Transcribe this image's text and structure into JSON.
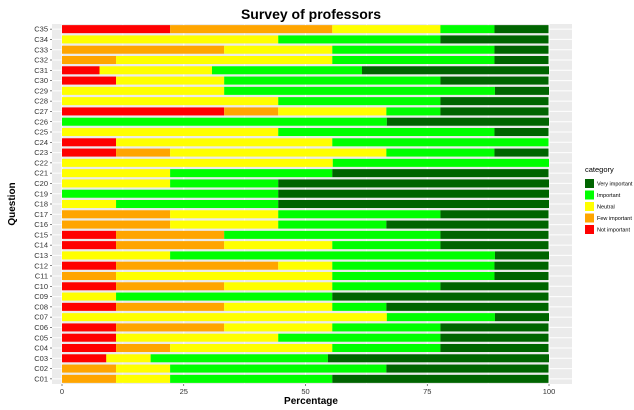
{
  "chart_data": {
    "type": "bar",
    "orientation": "horizontal",
    "stacked": true,
    "title": "Survey of professors",
    "xlabel": "Percentage",
    "ylabel": "Question",
    "xlim": [
      0,
      100
    ],
    "xticks": [
      "0",
      "25",
      "50",
      "75",
      "100"
    ],
    "xtick_values": [
      0,
      25,
      50,
      75,
      100
    ],
    "legend_title": "category",
    "legend_position": "right",
    "grid": true,
    "categories": [
      "C35",
      "C34",
      "C33",
      "C32",
      "C31",
      "C30",
      "C29",
      "C28",
      "C27",
      "C26",
      "C25",
      "C24",
      "C23",
      "C22",
      "C21",
      "C20",
      "C19",
      "C18",
      "C17",
      "C16",
      "C15",
      "C14",
      "C13",
      "C12",
      "C11",
      "C10",
      "C09",
      "C08",
      "C07",
      "C06",
      "C05",
      "C04",
      "C03",
      "C02",
      "C01"
    ],
    "series": [
      {
        "name": "Not important",
        "color": "#ff0000",
        "values": [
          22.2,
          0,
          0,
          0,
          7.7,
          11.1,
          0,
          0,
          33.3,
          0,
          0,
          11.1,
          11.1,
          0,
          0,
          0,
          0,
          0,
          0,
          0,
          11.1,
          11.1,
          0,
          11.1,
          0,
          11.1,
          0,
          11.1,
          0,
          11.1,
          11.1,
          11.1,
          9.1,
          0,
          0
        ]
      },
      {
        "name": "Few important",
        "color": "#ffa500",
        "values": [
          33.3,
          0,
          33.3,
          11.1,
          0,
          0,
          0,
          0,
          11.1,
          0,
          0,
          0,
          11.1,
          0,
          0,
          0,
          0,
          0,
          22.2,
          22.2,
          22.2,
          22.2,
          0,
          33.3,
          11.1,
          22.2,
          0,
          22.2,
          0,
          22.2,
          0,
          11.1,
          0,
          11.1,
          11.1
        ]
      },
      {
        "name": "Neutral",
        "color": "#ffff00",
        "values": [
          22.2,
          44.4,
          22.2,
          44.4,
          23.1,
          22.2,
          33.3,
          44.4,
          22.2,
          0,
          44.4,
          44.4,
          44.4,
          55.6,
          22.2,
          22.2,
          0,
          11.1,
          22.2,
          22.2,
          0,
          22.2,
          22.2,
          11.1,
          44.4,
          22.2,
          11.1,
          22.2,
          66.7,
          22.2,
          33.3,
          33.3,
          9.1,
          11.1,
          11.1
        ]
      },
      {
        "name": "Important",
        "color": "#00ff00",
        "values": [
          11.1,
          33.3,
          33.3,
          33.3,
          30.8,
          44.4,
          55.6,
          33.3,
          11.1,
          66.7,
          44.4,
          44.4,
          22.2,
          44.4,
          33.3,
          22.2,
          44.4,
          33.3,
          33.3,
          22.2,
          44.4,
          22.2,
          66.7,
          33.3,
          33.3,
          22.2,
          44.4,
          11.1,
          22.2,
          22.2,
          33.3,
          22.2,
          36.4,
          44.4,
          33.3
        ]
      },
      {
        "name": "Very important",
        "color": "#006400",
        "values": [
          11.1,
          22.2,
          11.1,
          11.1,
          38.5,
          22.2,
          11.1,
          22.2,
          22.2,
          33.3,
          11.1,
          0,
          11.1,
          0,
          44.4,
          55.6,
          55.6,
          55.6,
          22.2,
          33.3,
          22.2,
          22.2,
          11.1,
          11.1,
          11.1,
          22.2,
          44.4,
          33.3,
          11.1,
          22.2,
          22.2,
          22.2,
          45.5,
          33.3,
          44.4
        ]
      }
    ]
  }
}
